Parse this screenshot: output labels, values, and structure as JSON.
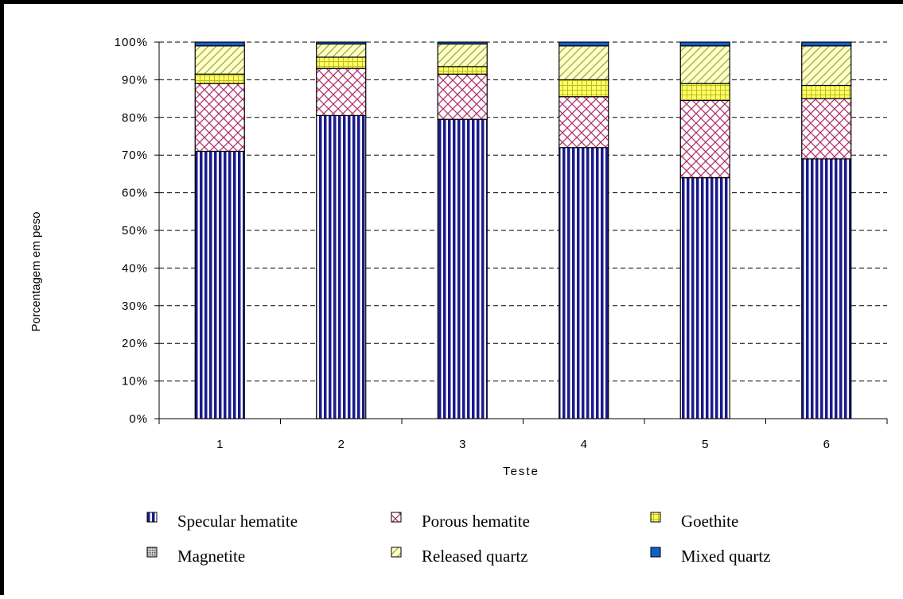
{
  "chart_data": {
    "type": "bar",
    "stacked": true,
    "percent_stacked": true,
    "title": "",
    "xlabel": "Teste",
    "ylabel": "Porcentagem em peso",
    "categories": [
      "1",
      "2",
      "3",
      "4",
      "5",
      "6"
    ],
    "ylim": [
      0,
      100
    ],
    "yticks": [
      "0%",
      "10%",
      "20%",
      "30%",
      "40%",
      "50%",
      "60%",
      "70%",
      "80%",
      "90%",
      "100%"
    ],
    "grid": "horizontal dashed",
    "legend_position": "bottom",
    "series": [
      {
        "name": "Specular hematite",
        "values": [
          71,
          80.5,
          79.5,
          72,
          64,
          69
        ],
        "color": "#1a1a8c",
        "pattern": "vertical-stripes"
      },
      {
        "name": "Porous hematite",
        "values": [
          18,
          12.5,
          12,
          13.5,
          20.5,
          16
        ],
        "color": "#b0306a",
        "pattern": "diagonal-cross"
      },
      {
        "name": "Goethite",
        "values": [
          2.5,
          3,
          2,
          4.5,
          4.5,
          3.5
        ],
        "color": "#ffff66",
        "pattern": "grid"
      },
      {
        "name": "Magnetite",
        "values": [
          0,
          0,
          0,
          0,
          0,
          0
        ],
        "color": "#888888",
        "pattern": "dots"
      },
      {
        "name": "Released quartz",
        "values": [
          7.5,
          3.5,
          6,
          9,
          10,
          10.5
        ],
        "color": "#ffffcc",
        "pattern": "diagonal-stripes"
      },
      {
        "name": "Mixed quartz",
        "values": [
          1,
          0.5,
          0.5,
          1,
          1,
          1
        ],
        "color": "#1060c8",
        "pattern": "solid"
      }
    ]
  }
}
